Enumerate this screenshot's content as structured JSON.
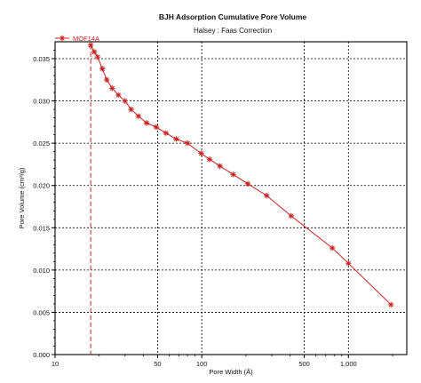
{
  "chart_data": {
    "type": "line",
    "title": "BJH Adsorption Cumulative Pore Volume",
    "subtitle": "Halsey : Faas Correction",
    "xlabel": "Pore Width (Å)",
    "ylabel": "Pore Volume (cm³/g)",
    "x_scale": "log",
    "xlim": [
      10,
      2500
    ],
    "ylim": [
      0,
      0.037
    ],
    "x_ticks": [
      {
        "value": 10,
        "label": "10"
      },
      {
        "value": 50,
        "label": "50"
      },
      {
        "value": 100,
        "label": "100"
      },
      {
        "value": 500,
        "label": "500"
      },
      {
        "value": 1000,
        "label": "1,000"
      }
    ],
    "y_ticks": [
      {
        "value": 0.0,
        "label": "0.000"
      },
      {
        "value": 0.005,
        "label": "0.005"
      },
      {
        "value": 0.01,
        "label": "0.010"
      },
      {
        "value": 0.015,
        "label": "0.015"
      },
      {
        "value": 0.02,
        "label": "0.020"
      },
      {
        "value": 0.025,
        "label": "0.025"
      },
      {
        "value": 0.03,
        "label": "0.030"
      },
      {
        "value": 0.035,
        "label": "0.035"
      }
    ],
    "grid": true,
    "legend": "top-left",
    "marker": "star",
    "reference_line": {
      "x": 17.5,
      "style": "dashed"
    },
    "series": [
      {
        "name": "MOF14A",
        "color": "#c8201e",
        "x": [
          17.5,
          18.5,
          19.5,
          21,
          22.5,
          24.5,
          27,
          30,
          33,
          37,
          42,
          49,
          57,
          67,
          80,
          99,
          113,
          133,
          164,
          206,
          277,
          407,
          777,
          1000,
          1950
        ],
        "y": [
          0.0366,
          0.0358,
          0.0352,
          0.0338,
          0.0325,
          0.0315,
          0.0307,
          0.03,
          0.029,
          0.0282,
          0.0274,
          0.0269,
          0.0262,
          0.0255,
          0.025,
          0.0238,
          0.0231,
          0.0223,
          0.0213,
          0.0202,
          0.0188,
          0.0164,
          0.0126,
          0.0108,
          0.0059
        ]
      }
    ]
  }
}
